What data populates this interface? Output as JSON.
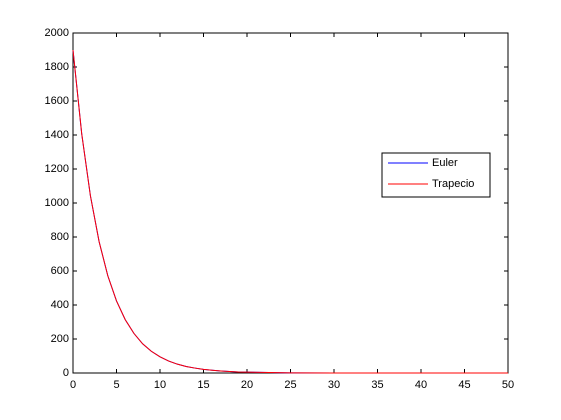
{
  "chart_data": {
    "type": "line",
    "x": [
      0,
      1,
      2,
      3,
      4,
      5,
      6,
      7,
      8,
      9,
      10,
      11,
      12,
      13,
      14,
      15,
      16,
      17,
      18,
      19,
      20,
      25,
      30,
      35,
      40,
      45,
      50
    ],
    "series": [
      {
        "name": "Euler",
        "color": "#0000ff",
        "values": [
          1900,
          1408,
          1043,
          773,
          572,
          424,
          314,
          233,
          172,
          128,
          95,
          70,
          52,
          38,
          29,
          21,
          16,
          12,
          9,
          6,
          5,
          1,
          0,
          0,
          0,
          0,
          0
        ]
      },
      {
        "name": "Trapecio",
        "color": "#ff0000",
        "values": [
          1900,
          1408,
          1043,
          773,
          572,
          424,
          314,
          233,
          172,
          128,
          95,
          70,
          52,
          38,
          29,
          21,
          16,
          12,
          9,
          6,
          5,
          1,
          0,
          0,
          0,
          0,
          0
        ]
      }
    ],
    "xlim": [
      0,
      50
    ],
    "xticks": [
      0,
      5,
      10,
      15,
      20,
      25,
      30,
      35,
      40,
      45,
      50
    ],
    "ylim": [
      0,
      2000
    ],
    "yticks": [
      0,
      200,
      400,
      600,
      800,
      1000,
      1200,
      1400,
      1600,
      1800,
      2000
    ],
    "legend": "right"
  }
}
